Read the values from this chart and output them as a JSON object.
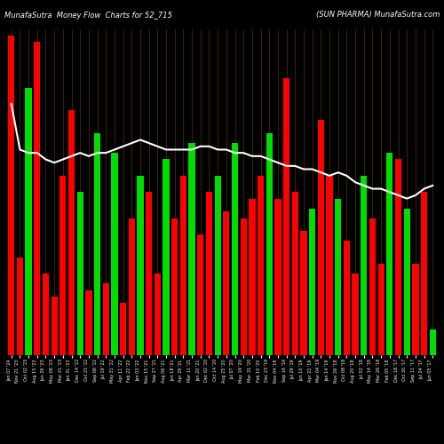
{
  "title_left": "MunafaSutra  Money Flow  Charts for 52_715",
  "title_right": "(SUN PHARMA) MunafaSutra.com",
  "background_color": "#000000",
  "bar_grid_color": "#4a2800",
  "line_color": "#ffffff",
  "colors": [
    "#ff0000",
    "#ff0000",
    "#00dd00",
    "#ff0000",
    "#ff0000",
    "#ff0000",
    "#ff0000",
    "#ff0000",
    "#00dd00",
    "#ff0000",
    "#00dd00",
    "#ff0000",
    "#00dd00",
    "#ff0000",
    "#ff0000",
    "#00dd00",
    "#ff0000",
    "#ff0000",
    "#00dd00",
    "#ff0000",
    "#ff0000",
    "#00dd00",
    "#ff0000",
    "#ff0000",
    "#00dd00",
    "#ff0000",
    "#00dd00",
    "#ff0000",
    "#ff0000",
    "#ff0000",
    "#00dd00",
    "#ff0000",
    "#ff0000",
    "#ff0000",
    "#ff0000",
    "#00dd00",
    "#ff0000",
    "#ff0000",
    "#00dd00",
    "#ff0000",
    "#ff0000",
    "#00dd00",
    "#ff0000",
    "#ff0000",
    "#00dd00",
    "#ff0000",
    "#00dd00",
    "#ff0000",
    "#ff0000",
    "#00dd00"
  ],
  "bar_heights": [
    98,
    30,
    82,
    96,
    25,
    18,
    55,
    75,
    50,
    20,
    68,
    22,
    62,
    16,
    42,
    55,
    50,
    25,
    60,
    42,
    55,
    65,
    37,
    50,
    55,
    44,
    65,
    42,
    48,
    55,
    68,
    48,
    85,
    50,
    38,
    45,
    72,
    55,
    48,
    35,
    25,
    55,
    42,
    28,
    62,
    60,
    45,
    28,
    50,
    8
  ],
  "line_values": [
    77,
    63,
    62,
    62,
    60,
    59,
    60,
    61,
    62,
    61,
    62,
    62,
    63,
    64,
    65,
    66,
    65,
    64,
    63,
    63,
    63,
    63,
    64,
    64,
    63,
    63,
    62,
    62,
    61,
    61,
    60,
    59,
    58,
    58,
    57,
    57,
    56,
    55,
    56,
    55,
    53,
    52,
    51,
    51,
    50,
    49,
    48,
    49,
    51,
    52
  ],
  "x_labels": [
    "Jan 07 '24",
    "Nov 21 '23",
    "Oct 02 '23",
    "Aug 15 '23",
    "Jun 26 '23",
    "May 08 '23",
    "Mar 21 '23",
    "Jan 31 '23",
    "Dec 14 '22",
    "Oct 25 '22",
    "Sep 06 '22",
    "Jul 19 '22",
    "May 31 '22",
    "Apr 11 '22",
    "Feb 22 '22",
    "Jan 03 '22",
    "Nov 15 '21",
    "Sep 27 '21",
    "Aug 06 '21",
    "Jun 18 '21",
    "Apr 29 '21",
    "Mar 11 '21",
    "Jan 20 '21",
    "Dec 02 '20",
    "Oct 14 '20",
    "Aug 25 '20",
    "Jul 07 '20",
    "May 19 '20",
    "Mar 31 '20",
    "Feb 10 '20",
    "Dec 23 '19",
    "Nov 04 '19",
    "Sep 16 '19",
    "Jul 29 '19",
    "Jun 10 '19",
    "Apr 22 '19",
    "Mar 04 '19",
    "Jan 14 '19",
    "Nov 26 '18",
    "Oct 08 '18",
    "Aug 20 '18",
    "Jul 02 '18",
    "May 14 '18",
    "Mar 26 '18",
    "Feb 05 '18",
    "Dec 18 '17",
    "Oct 30 '17",
    "Sep 11 '17",
    "Jul 24 '17",
    "Jun 05 '17"
  ]
}
